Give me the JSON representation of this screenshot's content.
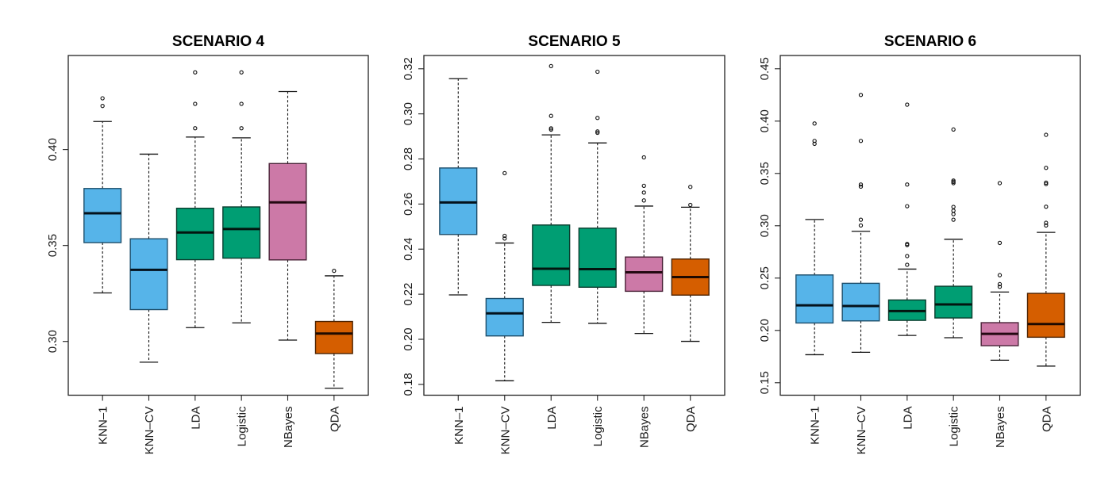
{
  "chart_data": [
    {
      "type": "box",
      "title": "SCENARIO 4",
      "xlabel": "",
      "ylabel": "",
      "categories": [
        "KNN–1",
        "KNN–CV",
        "LDA",
        "Logistic",
        "NBayes",
        "QDA"
      ],
      "ylim": [
        0.272,
        0.449
      ],
      "yticks": [
        0.3,
        0.35,
        0.4
      ],
      "ytick_labels": [
        "0.30",
        "0.35",
        "0.40"
      ],
      "grid": false,
      "series": [
        {
          "name": "KNN–1",
          "color": "#56B4E9",
          "whisker_low": 0.3253,
          "q1": 0.3515,
          "median": 0.3668,
          "q3": 0.3797,
          "whisker_high": 0.4146,
          "outliers": [
            0.4267,
            0.4227
          ]
        },
        {
          "name": "KNN–CV",
          "color": "#56B4E9",
          "whisker_low": 0.2892,
          "q1": 0.3166,
          "median": 0.3373,
          "q3": 0.3535,
          "whisker_high": 0.3976,
          "outliers": []
        },
        {
          "name": "LDA",
          "color": "#009E73",
          "whisker_low": 0.3072,
          "q1": 0.3426,
          "median": 0.3568,
          "q3": 0.3694,
          "whisker_high": 0.4065,
          "outliers": [
            0.4402,
            0.4238,
            0.4111
          ]
        },
        {
          "name": "Logistic",
          "color": "#009E73",
          "whisker_low": 0.3097,
          "q1": 0.3434,
          "median": 0.3586,
          "q3": 0.3701,
          "whisker_high": 0.4061,
          "outliers": [
            0.4402,
            0.4238,
            0.4111
          ]
        },
        {
          "name": "NBayes",
          "color": "#CC79A7",
          "whisker_low": 0.3007,
          "q1": 0.3425,
          "median": 0.3725,
          "q3": 0.3927,
          "whisker_high": 0.4302,
          "outliers": []
        },
        {
          "name": "QDA",
          "color": "#D55E00",
          "whisker_low": 0.2756,
          "q1": 0.2937,
          "median": 0.3041,
          "q3": 0.3104,
          "whisker_high": 0.3342,
          "outliers": [
            0.3368
          ]
        }
      ]
    },
    {
      "type": "box",
      "title": "SCENARIO 5",
      "xlabel": "",
      "ylabel": "",
      "categories": [
        "KNN–1",
        "KNN–CV",
        "LDA",
        "Logistic",
        "NBayes",
        "QDA"
      ],
      "ylim": [
        0.1752,
        0.3259
      ],
      "yticks": [
        0.18,
        0.2,
        0.22,
        0.24,
        0.26,
        0.28,
        0.3,
        0.32
      ],
      "ytick_labels": [
        "0.18",
        "0.20",
        "0.22",
        "0.24",
        "0.26",
        "0.28",
        "0.30",
        "0.32"
      ],
      "grid": false,
      "series": [
        {
          "name": "KNN–1",
          "color": "#56B4E9",
          "whisker_low": 0.2197,
          "q1": 0.2465,
          "median": 0.2607,
          "q3": 0.276,
          "whisker_high": 0.3156,
          "outliers": []
        },
        {
          "name": "KNN–CV",
          "color": "#56B4E9",
          "whisker_low": 0.1816,
          "q1": 0.2015,
          "median": 0.2115,
          "q3": 0.2181,
          "whisker_high": 0.2427,
          "outliers": [
            0.2737,
            0.2459,
            0.2447
          ]
        },
        {
          "name": "LDA",
          "color": "#009E73",
          "whisker_low": 0.2075,
          "q1": 0.2239,
          "median": 0.2313,
          "q3": 0.2507,
          "whisker_high": 0.2907,
          "outliers": [
            0.3212,
            0.2991,
            0.2936,
            0.293
          ]
        },
        {
          "name": "Logistic",
          "color": "#009E73",
          "whisker_low": 0.2071,
          "q1": 0.2231,
          "median": 0.2311,
          "q3": 0.2493,
          "whisker_high": 0.2871,
          "outliers": [
            0.3187,
            0.2982,
            0.2922,
            0.2916
          ]
        },
        {
          "name": "NBayes",
          "color": "#CC79A7",
          "whisker_low": 0.2026,
          "q1": 0.2213,
          "median": 0.2297,
          "q3": 0.2365,
          "whisker_high": 0.2591,
          "outliers": [
            0.2807,
            0.2681,
            0.2651,
            0.2616
          ]
        },
        {
          "name": "QDA",
          "color": "#D55E00",
          "whisker_low": 0.1991,
          "q1": 0.2196,
          "median": 0.2276,
          "q3": 0.2356,
          "whisker_high": 0.2586,
          "outliers": [
            0.2676,
            0.2596
          ]
        }
      ]
    },
    {
      "type": "box",
      "title": "SCENARIO 6",
      "xlabel": "",
      "ylabel": "",
      "categories": [
        "KNN–1",
        "KNN–CV",
        "LDA",
        "Logistic",
        "NBayes",
        "QDA"
      ],
      "ylim": [
        0.1381,
        0.4627
      ],
      "yticks": [
        0.15,
        0.2,
        0.25,
        0.3,
        0.35,
        0.4,
        0.45
      ],
      "ytick_labels": [
        "0.15",
        "0.20",
        "0.25",
        "0.30",
        "0.35",
        "0.40",
        "0.45"
      ],
      "grid": false,
      "series": [
        {
          "name": "KNN–1",
          "color": "#56B4E9",
          "whisker_low": 0.1768,
          "q1": 0.2071,
          "median": 0.224,
          "q3": 0.253,
          "whisker_high": 0.306,
          "outliers": [
            0.3977,
            0.3811,
            0.3783
          ]
        },
        {
          "name": "KNN–CV",
          "color": "#56B4E9",
          "whisker_low": 0.1791,
          "q1": 0.2091,
          "median": 0.2233,
          "q3": 0.245,
          "whisker_high": 0.2947,
          "outliers": [
            0.425,
            0.3811,
            0.3394,
            0.3374,
            0.3058,
            0.3003
          ]
        },
        {
          "name": "LDA",
          "color": "#009E73",
          "whisker_low": 0.1952,
          "q1": 0.2096,
          "median": 0.2185,
          "q3": 0.2291,
          "whisker_high": 0.2586,
          "outliers": [
            0.4157,
            0.3394,
            0.3187,
            0.2826,
            0.2816,
            0.271,
            0.2627
          ]
        },
        {
          "name": "Logistic",
          "color": "#009E73",
          "whisker_low": 0.193,
          "q1": 0.2119,
          "median": 0.2248,
          "q3": 0.2422,
          "whisker_high": 0.2871,
          "outliers": [
            0.392,
            0.3432,
            0.342,
            0.3407,
            0.318,
            0.3144,
            0.3111,
            0.3058
          ]
        },
        {
          "name": "NBayes",
          "color": "#CC79A7",
          "whisker_low": 0.1715,
          "q1": 0.1854,
          "median": 0.1967,
          "q3": 0.2074,
          "whisker_high": 0.2367,
          "outliers": [
            0.3407,
            0.2836,
            0.2528,
            0.2442,
            0.2417
          ]
        },
        {
          "name": "QDA",
          "color": "#D55E00",
          "whisker_low": 0.1659,
          "q1": 0.1935,
          "median": 0.2061,
          "q3": 0.2354,
          "whisker_high": 0.2937,
          "outliers": [
            0.3869,
            0.3553,
            0.3412,
            0.3399,
            0.3182,
            0.3028,
            0.3003
          ]
        }
      ]
    }
  ]
}
